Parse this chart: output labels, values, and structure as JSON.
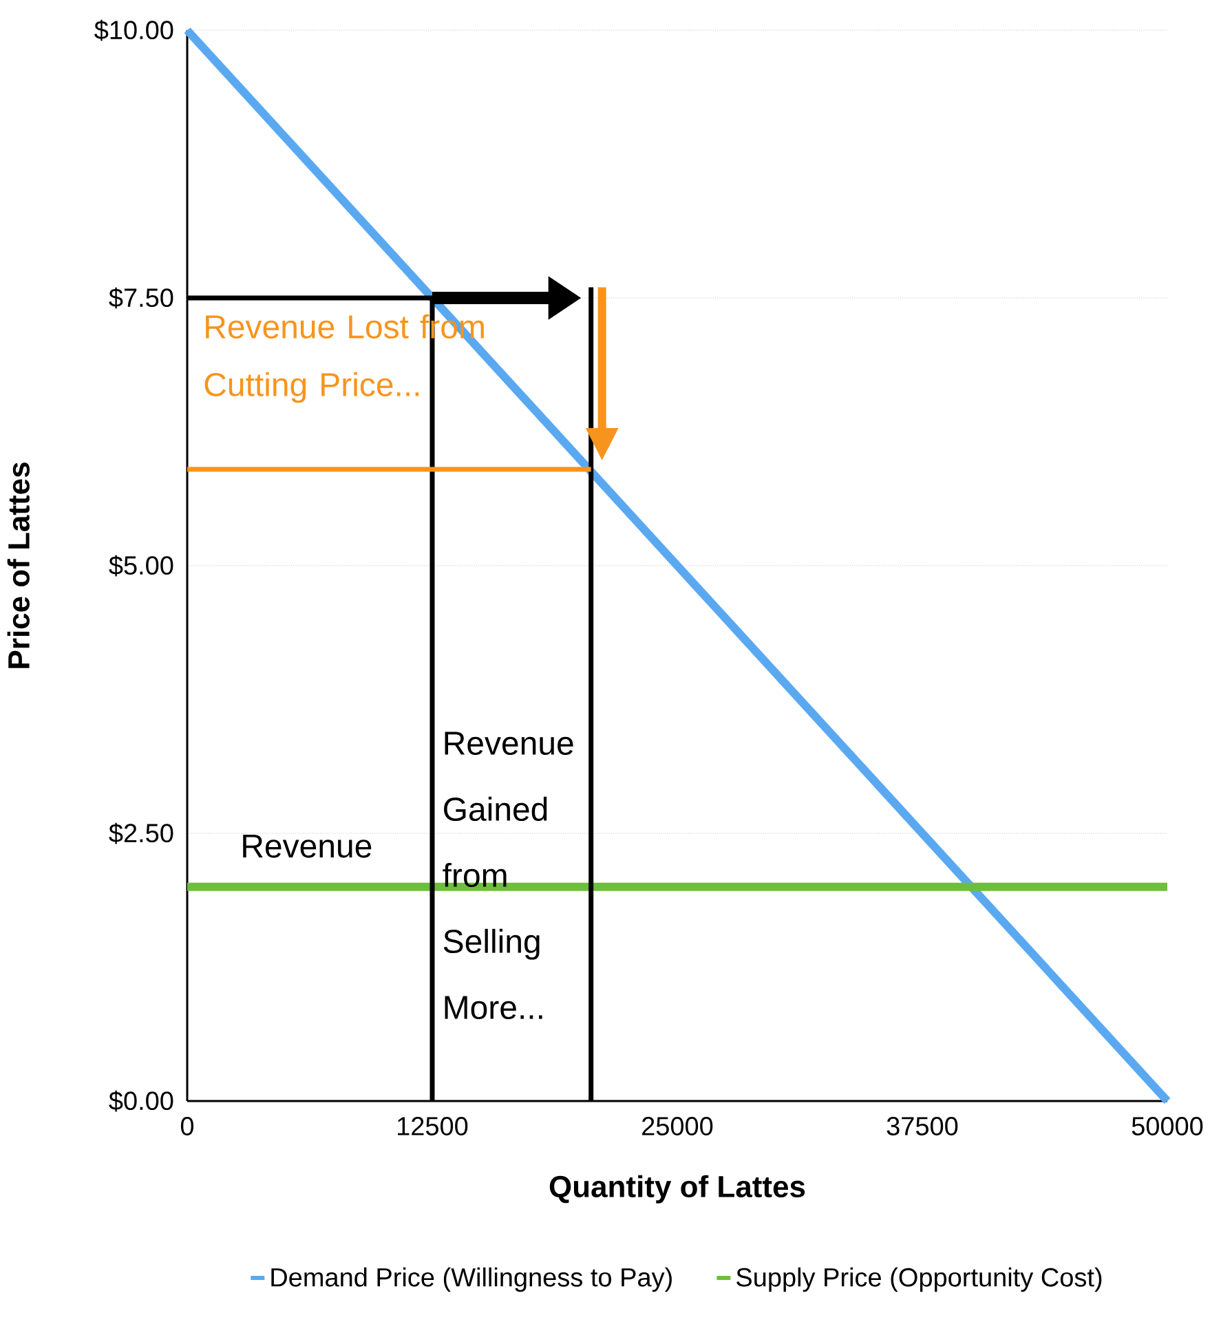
{
  "chart_data": {
    "type": "line",
    "xlabel": "Quantity of Lattes",
    "ylabel": "Price of Lattes",
    "xlim": [
      0,
      50000
    ],
    "xticks": [
      0,
      12500,
      25000,
      37500,
      50000
    ],
    "ylim": [
      0,
      10
    ],
    "yticks": [
      {
        "value": 0,
        "label": "$0.00"
      },
      {
        "value": 2.5,
        "label": "$2.50"
      },
      {
        "value": 5,
        "label": "$5.00"
      },
      {
        "value": 7.5,
        "label": "$7.50"
      },
      {
        "value": 10,
        "label": "$10.00"
      }
    ],
    "grid": "y",
    "legend": "bottom",
    "series": [
      {
        "name": "Demand Price (Willingness to Pay)",
        "color": "#5aa9f0",
        "x": [
          0,
          50000
        ],
        "values": [
          10,
          0
        ]
      },
      {
        "name": "Supply Price (Opportunity Cost)",
        "color": "#6cbf3c",
        "x": [
          0,
          50000
        ],
        "values": [
          2,
          2
        ]
      },
      {
        "color": "#000000",
        "x": [
          0,
          12500,
          12500
        ],
        "values": [
          7.5,
          7.5,
          0
        ]
      },
      {
        "color": "#000000",
        "x": [
          20600,
          20600
        ],
        "values": [
          0,
          7.6
        ]
      },
      {
        "color": "#f7941d",
        "x": [
          0,
          20600
        ],
        "values": [
          5.9,
          5.9
        ]
      }
    ],
    "annotations": [
      "Revenue Lost from Cutting Price...",
      "Revenue",
      "Revenue Gained from Selling More..."
    ]
  }
}
